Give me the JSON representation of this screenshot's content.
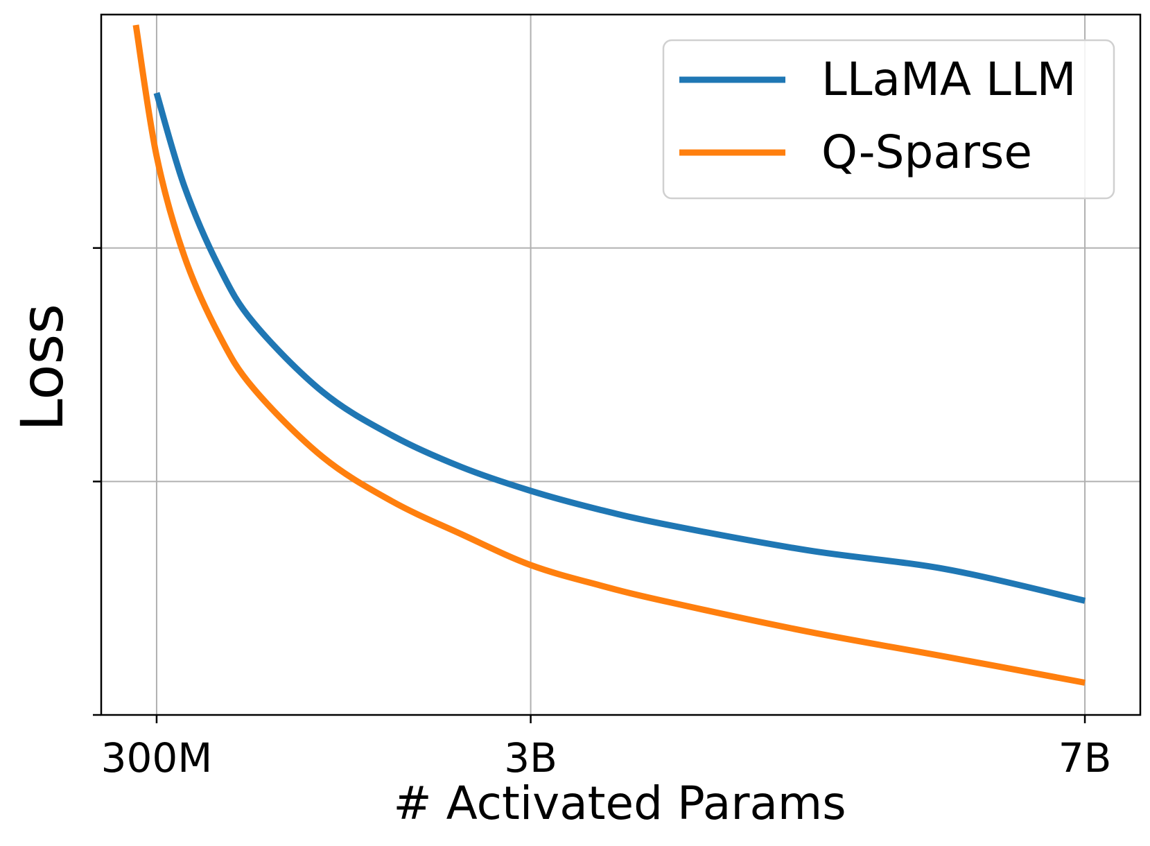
{
  "chart_data": {
    "type": "line",
    "title": "",
    "xlabel": "# Activated Params",
    "ylabel": "Loss",
    "x_ticks": [
      {
        "value": 0.3,
        "label": "300M"
      },
      {
        "value": 3,
        "label": "3B"
      },
      {
        "value": 7,
        "label": "7B"
      }
    ],
    "y_ticks": [
      0.3333,
      0.6667
    ],
    "y_tick_labels_shown": false,
    "xlim": [
      -0.1,
      7.4
    ],
    "ylim": [
      0,
      1
    ],
    "grid": true,
    "legend_position": "top-right",
    "series": [
      {
        "name": "LLaMA LLM",
        "color": "#1f77b4",
        "x": [
          0.3,
          0.5,
          0.75,
          1.0,
          1.5,
          2.0,
          2.5,
          3.0,
          3.5,
          4.0,
          5.0,
          6.0,
          7.0
        ],
        "y": [
          0.888,
          0.755,
          0.64,
          0.56,
          0.461,
          0.399,
          0.354,
          0.32,
          0.293,
          0.271,
          0.235,
          0.208,
          0.163
        ]
      },
      {
        "name": "Q-Sparse",
        "color": "#ff7f0e",
        "x": [
          0.15,
          0.3,
          0.5,
          0.75,
          1.0,
          1.5,
          2.0,
          2.5,
          3.0,
          3.5,
          4.0,
          5.0,
          6.0,
          7.0
        ],
        "y": [
          0.985,
          0.798,
          0.655,
          0.543,
          0.466,
          0.368,
          0.305,
          0.258,
          0.214,
          0.185,
          0.161,
          0.119,
          0.083,
          0.046
        ]
      }
    ]
  }
}
